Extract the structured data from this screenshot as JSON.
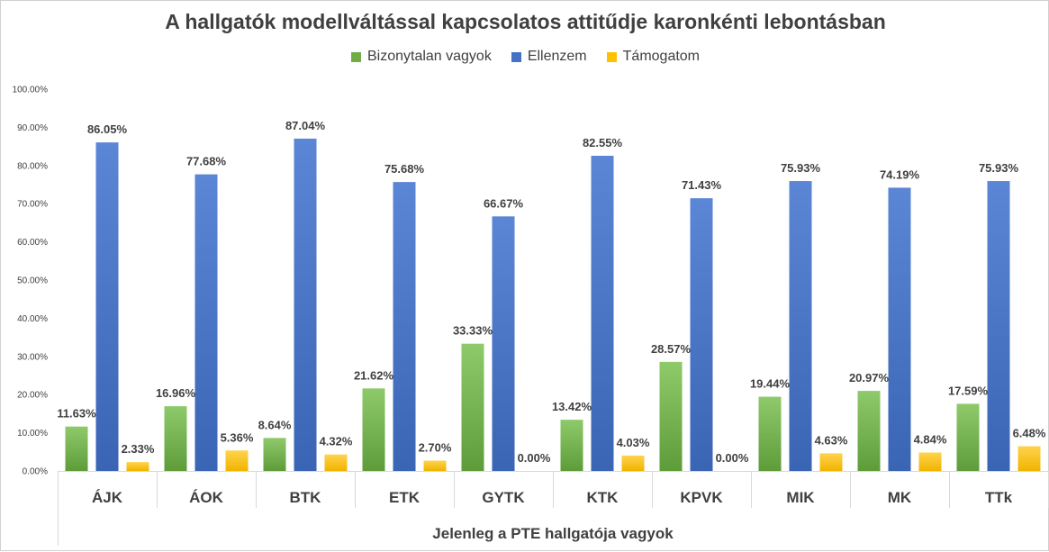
{
  "chart_data": {
    "type": "bar",
    "title": "A hallgatók modellváltással kapcsolatos attitűdje karonkénti lebontásban",
    "xlabel": "Jelenleg a PTE hallgatója vagyok",
    "ylabel": "",
    "ylim": [
      0,
      100
    ],
    "y_ticks": [
      "0.00%",
      "10.00%",
      "20.00%",
      "30.00%",
      "40.00%",
      "50.00%",
      "60.00%",
      "70.00%",
      "80.00%",
      "90.00%",
      "100.00%"
    ],
    "categories": [
      "ÁJK",
      "ÁOK",
      "BTK",
      "ETK",
      "GYTK",
      "KTK",
      "KPVK",
      "MIK",
      "MK",
      "TTk"
    ],
    "legend_position": "top",
    "grid": false,
    "series": [
      {
        "name": "Bizonytalan vagyok",
        "color": "#70ad47",
        "values": [
          11.63,
          16.96,
          8.64,
          21.62,
          33.33,
          13.42,
          28.57,
          19.44,
          20.97,
          17.59
        ],
        "labels": [
          "11.63%",
          "16.96%",
          "8.64%",
          "21.62%",
          "33.33%",
          "13.42%",
          "28.57%",
          "19.44%",
          "20.97%",
          "17.59%"
        ]
      },
      {
        "name": "Ellenzem",
        "color": "#4472c4",
        "values": [
          86.05,
          77.68,
          87.04,
          75.68,
          66.67,
          82.55,
          71.43,
          75.93,
          74.19,
          75.93
        ],
        "labels": [
          "86.05%",
          "77.68%",
          "87.04%",
          "75.68%",
          "66.67%",
          "82.55%",
          "71.43%",
          "75.93%",
          "74.19%",
          "75.93%"
        ]
      },
      {
        "name": "Támogatom",
        "color": "#ffc000",
        "values": [
          2.33,
          5.36,
          4.32,
          2.7,
          0.0,
          4.03,
          0.0,
          4.63,
          4.84,
          6.48
        ],
        "labels": [
          "2.33%",
          "5.36%",
          "4.32%",
          "2.70%",
          "0.00%",
          "4.03%",
          "0.00%",
          "4.63%",
          "4.84%",
          "6.48%"
        ]
      }
    ]
  }
}
